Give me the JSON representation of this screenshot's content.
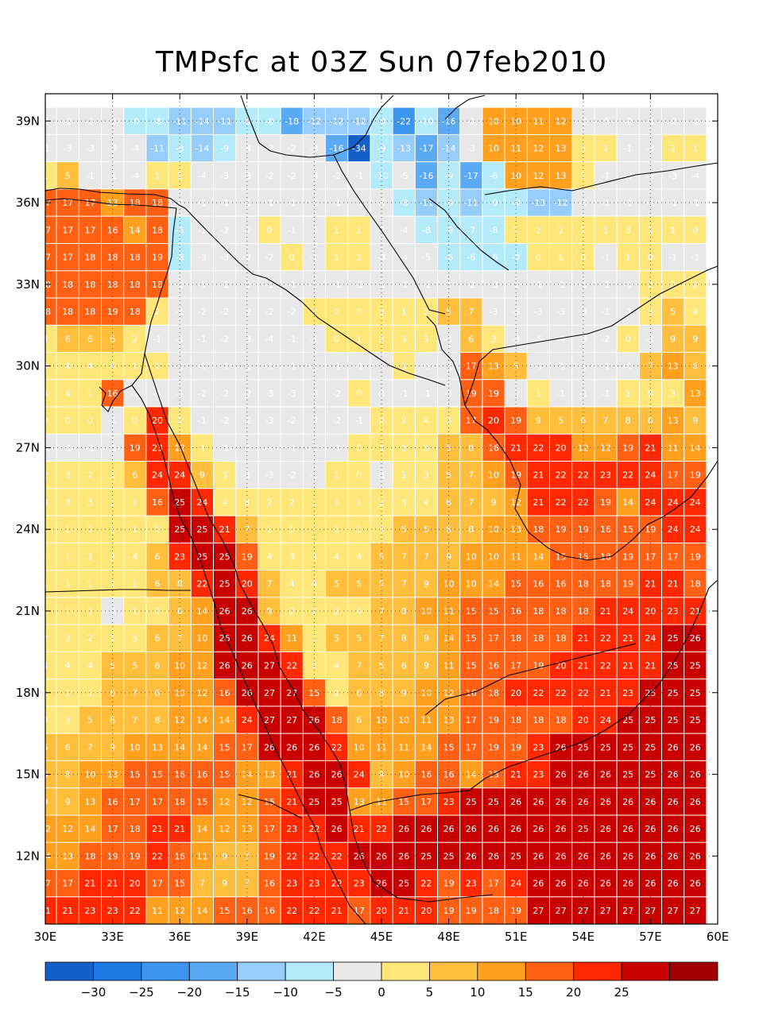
{
  "title": "TMPsfc at 03Z Sun 07feb2010",
  "map": {
    "lon_range": [
      30,
      60
    ],
    "lat_range": [
      9.5,
      40
    ],
    "lon_ticks": [
      "30E",
      "33E",
      "36E",
      "39E",
      "42E",
      "45E",
      "48E",
      "51E",
      "54E",
      "57E",
      "60E"
    ],
    "lat_ticks": [
      "12N",
      "15N",
      "18N",
      "21N",
      "24N",
      "27N",
      "30N",
      "33N",
      "36N",
      "39N"
    ]
  },
  "colorbar": {
    "colors": [
      "#1560c8",
      "#1e78e6",
      "#3c96f0",
      "#5aaaf5",
      "#96cdfa",
      "#b4ebfa",
      "#e8e8e8",
      "#ffe678",
      "#ffbe3c",
      "#ffa01e",
      "#ff6014",
      "#ff2800",
      "#c80000",
      "#a00000"
    ],
    "labels": [
      "-30",
      "-25",
      "-20",
      "-15",
      "-10",
      "-5",
      "0",
      "5",
      "10",
      "15",
      "20",
      "25"
    ]
  },
  "chart_data": {
    "type": "heatmap",
    "title": "TMPsfc at 03Z Sun 07feb2010",
    "x_start": 30,
    "x_step": 1,
    "y_start": 39,
    "y_step": -1,
    "rows": [
      [
        -1,
        -2,
        -2,
        -3,
        -8,
        -8,
        -11,
        -14,
        -11,
        -9,
        -8,
        -18,
        -12,
        -12,
        -12,
        -8,
        -22,
        -10,
        -16,
        -2,
        10,
        10,
        11,
        12,
        -2,
        -5,
        -2,
        -1,
        -2,
        -2
      ],
      [
        -1,
        -3,
        -3,
        -3,
        -4,
        -11,
        -8,
        -14,
        -9,
        -4,
        -3,
        -2,
        -3,
        -16,
        -34,
        -9,
        -13,
        -17,
        -14,
        -3,
        10,
        11,
        12,
        13,
        3,
        1,
        -1,
        -3,
        2,
        1
      ],
      [
        1,
        5,
        -1,
        -1,
        -4,
        1,
        1,
        -4,
        -3,
        -3,
        -2,
        -2,
        -4,
        -2,
        -1,
        -10,
        -5,
        -16,
        -9,
        -17,
        -6,
        10,
        12,
        13,
        1,
        -1,
        -3,
        -2,
        -3,
        -4
      ],
      [
        17,
        17,
        17,
        13,
        18,
        18,
        -1,
        -1,
        -1,
        -1,
        -1,
        -1,
        -1,
        -1,
        -1,
        -1,
        -8,
        -11,
        -9,
        -11,
        -9,
        -9,
        -13,
        -12,
        -5,
        -1,
        -1,
        -1,
        -1,
        -1
      ],
      [
        17,
        17,
        17,
        16,
        14,
        18,
        -6,
        -1,
        -2,
        -2,
        0,
        -1,
        -1,
        1,
        2,
        -1,
        -4,
        -8,
        -9,
        -7,
        -8,
        1,
        2,
        2,
        1,
        1,
        3,
        1,
        1,
        0
      ],
      [
        17,
        17,
        18,
        18,
        18,
        19,
        -8,
        -3,
        -3,
        -2,
        -2,
        0,
        -1,
        1,
        2,
        -3,
        -4,
        -5,
        -6,
        -6,
        -6,
        -9,
        0,
        1,
        0,
        -1,
        1,
        0,
        -1,
        -1
      ],
      [
        18,
        18,
        18,
        18,
        18,
        18,
        -1,
        -1,
        -1,
        -1,
        -1,
        -1,
        -1,
        -1,
        -1,
        -1,
        -1,
        -1,
        -1,
        -2,
        -3,
        -2,
        -1,
        -1,
        -1,
        -1,
        -1,
        2,
        2,
        2
      ],
      [
        18,
        18,
        18,
        19,
        18,
        2,
        -1,
        -2,
        -2,
        -2,
        -2,
        -2,
        0,
        0,
        0,
        0,
        1,
        3,
        5,
        7,
        -3,
        -3,
        -3,
        -3,
        -3,
        -1,
        -1,
        3,
        5,
        4
      ],
      [
        4,
        6,
        6,
        6,
        2,
        -1,
        -1,
        -1,
        -2,
        -3,
        -4,
        -1,
        -1,
        0,
        1,
        2,
        3,
        3,
        -1,
        6,
        3,
        -3,
        -5,
        -4,
        -3,
        -2,
        0,
        -1,
        9,
        9
      ],
      [
        4,
        4,
        4,
        4,
        1,
        1,
        -1,
        -1,
        -1,
        -1,
        -1,
        -1,
        -1,
        -1,
        -1,
        -1,
        1,
        -1,
        -1,
        17,
        13,
        5,
        -1,
        -1,
        -1,
        -1,
        -1,
        7,
        13,
        6
      ],
      [
        4,
        4,
        1,
        16,
        -2,
        -1,
        -1,
        -2,
        -2,
        -2,
        -3,
        -3,
        -4,
        -2,
        0,
        -1,
        -1,
        -1,
        -1,
        19,
        19,
        -2,
        1,
        -1,
        -1,
        -1,
        1,
        0,
        3,
        13
      ],
      [
        0,
        0,
        0,
        -1,
        0,
        20,
        1,
        -1,
        -2,
        -2,
        -3,
        -2,
        -2,
        -2,
        -1,
        0,
        2,
        4,
        3,
        17,
        20,
        19,
        9,
        5,
        6,
        7,
        8,
        6,
        13,
        9
      ],
      [
        -1,
        -1,
        -1,
        -1,
        19,
        23,
        12,
        4,
        -1,
        -1,
        -1,
        -1,
        -1,
        -1,
        3,
        1,
        1,
        3,
        5,
        8,
        16,
        21,
        22,
        20,
        12,
        12,
        19,
        21,
        11,
        14
      ],
      [
        2,
        2,
        2,
        1,
        6,
        24,
        24,
        9,
        3,
        -1,
        -3,
        -2,
        -1,
        1,
        0,
        -1,
        1,
        3,
        5,
        7,
        10,
        19,
        21,
        22,
        22,
        23,
        22,
        24,
        17,
        19
      ],
      [
        3,
        3,
        3,
        1,
        1,
        16,
        25,
        24,
        4,
        3,
        2,
        2,
        1,
        1,
        1,
        2,
        3,
        4,
        6,
        7,
        9,
        12,
        21,
        22,
        22,
        19,
        14,
        24,
        24,
        24
      ],
      [
        1,
        1,
        1,
        1,
        1,
        1,
        25,
        25,
        21,
        7,
        1,
        1,
        1,
        1,
        1,
        3,
        5,
        5,
        6,
        8,
        10,
        13,
        18,
        19,
        19,
        16,
        15,
        19,
        24,
        24
      ],
      [
        1,
        1,
        2,
        3,
        4,
        6,
        23,
        25,
        25,
        19,
        4,
        3,
        3,
        4,
        4,
        5,
        7,
        7,
        9,
        10,
        10,
        11,
        14,
        15,
        15,
        18,
        19,
        17,
        17,
        19
      ],
      [
        1,
        1,
        1,
        1,
        1,
        6,
        8,
        22,
        25,
        20,
        7,
        4,
        4,
        5,
        5,
        5,
        7,
        9,
        10,
        10,
        14,
        15,
        16,
        16,
        18,
        18,
        19,
        21,
        21,
        18
      ],
      [
        1,
        1,
        1,
        -1,
        1,
        1,
        6,
        14,
        26,
        26,
        9,
        2,
        2,
        2,
        4,
        7,
        8,
        10,
        11,
        15,
        15,
        16,
        18,
        18,
        18,
        21,
        24,
        20,
        23,
        21
      ],
      [
        2,
        2,
        2,
        1,
        3,
        6,
        7,
        10,
        26,
        26,
        24,
        11,
        1,
        5,
        5,
        7,
        8,
        9,
        14,
        15,
        17,
        18,
        18,
        18,
        21,
        22,
        21,
        24,
        25,
        26
      ],
      [
        4,
        4,
        4,
        5,
        5,
        6,
        10,
        12,
        26,
        26,
        27,
        22,
        0,
        4,
        7,
        5,
        6,
        9,
        11,
        15,
        16,
        17,
        19,
        20,
        21,
        22,
        21,
        21,
        25,
        25
      ],
      [
        1,
        1,
        1,
        6,
        7,
        6,
        10,
        12,
        16,
        26,
        27,
        27,
        15,
        2,
        6,
        8,
        9,
        10,
        12,
        16,
        18,
        20,
        22,
        22,
        22,
        21,
        23,
        25,
        25,
        25
      ],
      [
        3,
        3,
        5,
        6,
        7,
        8,
        12,
        14,
        14,
        24,
        27,
        27,
        26,
        18,
        6,
        10,
        10,
        11,
        13,
        17,
        19,
        18,
        18,
        18,
        20,
        24,
        25,
        25,
        25,
        25
      ],
      [
        6,
        6,
        7,
        9,
        10,
        13,
        14,
        14,
        15,
        17,
        26,
        26,
        26,
        22,
        10,
        11,
        11,
        14,
        15,
        17,
        19,
        19,
        23,
        26,
        25,
        25,
        25,
        25,
        26,
        26
      ],
      [
        5,
        8,
        10,
        13,
        15,
        15,
        16,
        16,
        15,
        14,
        13,
        21,
        26,
        26,
        24,
        9,
        10,
        16,
        16,
        14,
        15,
        21,
        23,
        26,
        26,
        26,
        25,
        25,
        26,
        26
      ],
      [
        9,
        9,
        13,
        16,
        17,
        17,
        18,
        15,
        12,
        12,
        15,
        21,
        25,
        25,
        13,
        11,
        15,
        17,
        23,
        25,
        25,
        26,
        26,
        26,
        26,
        26,
        26,
        26,
        26,
        26
      ],
      [
        12,
        12,
        14,
        17,
        18,
        21,
        21,
        14,
        12,
        13,
        17,
        23,
        22,
        26,
        21,
        22,
        26,
        26,
        26,
        26,
        26,
        26,
        26,
        26,
        25,
        26,
        26,
        26,
        26,
        26
      ],
      [
        14,
        13,
        18,
        19,
        19,
        22,
        16,
        11,
        9,
        7,
        19,
        22,
        22,
        22,
        26,
        26,
        26,
        25,
        25,
        26,
        26,
        25,
        26,
        26,
        26,
        26,
        26,
        26,
        26,
        26
      ],
      [
        17,
        17,
        21,
        21,
        20,
        17,
        15,
        7,
        9,
        7,
        16,
        23,
        23,
        22,
        23,
        26,
        25,
        22,
        19,
        23,
        17,
        24,
        26,
        26,
        26,
        26,
        26,
        26,
        26,
        26
      ],
      [
        21,
        21,
        23,
        23,
        22,
        11,
        12,
        14,
        15,
        16,
        16,
        22,
        22,
        21,
        17,
        20,
        21,
        20,
        19,
        19,
        18,
        19,
        27,
        27,
        27,
        27,
        27,
        27,
        27,
        27
      ]
    ],
    "xlabel": "",
    "ylabel": ""
  }
}
